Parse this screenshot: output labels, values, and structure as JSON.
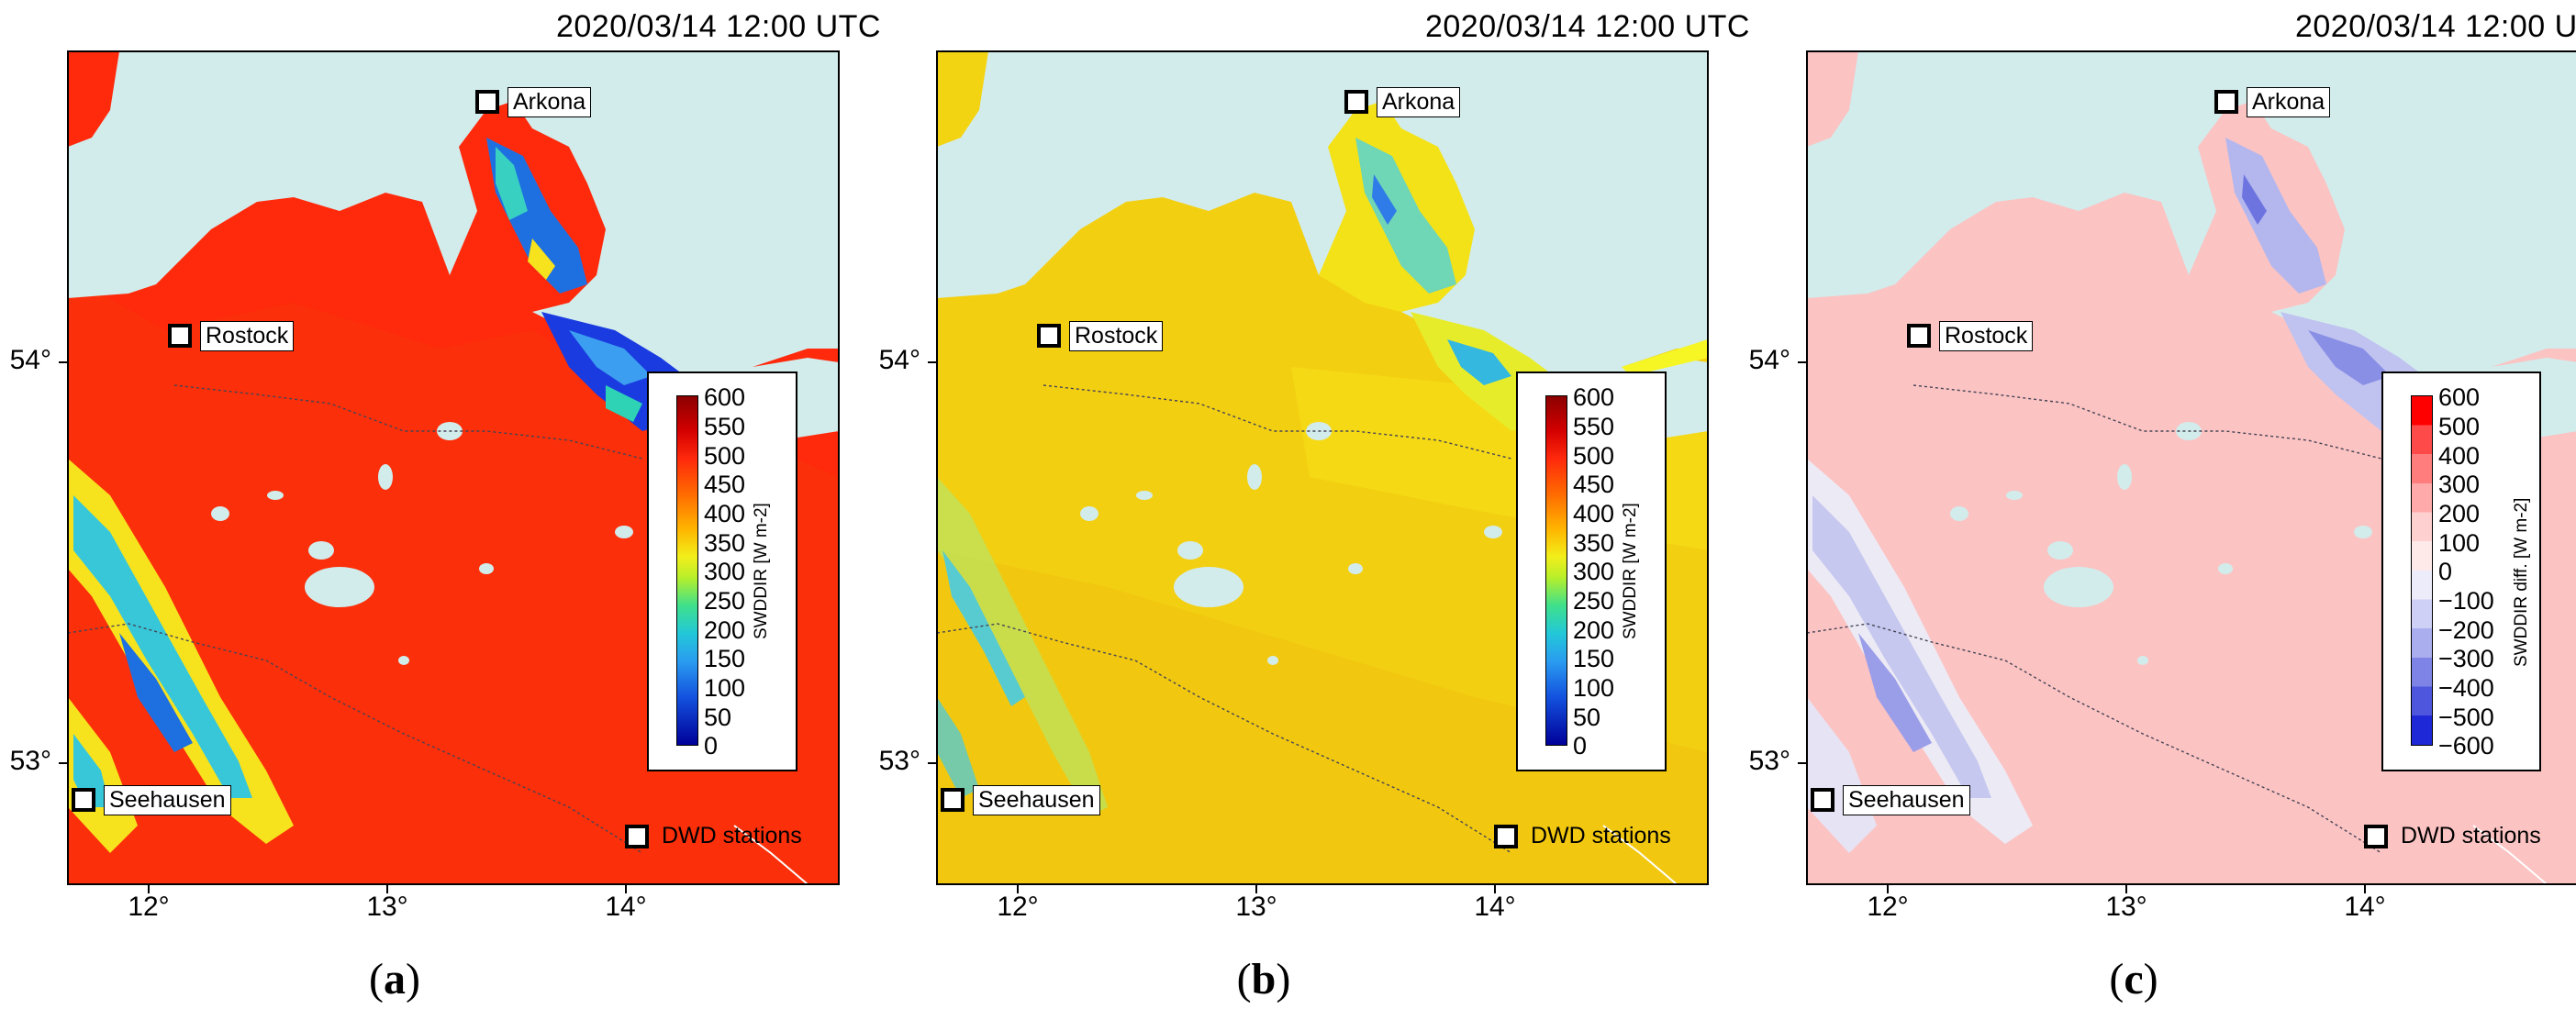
{
  "timestamp": "2020/03/14 12:00 UTC",
  "lat_labels": [
    "54°",
    "53°"
  ],
  "lon_labels": [
    "12°",
    "13°",
    "14°"
  ],
  "stations": {
    "arkona": "Arkona",
    "rostock": "Rostock",
    "seehausen": "Seehausen",
    "legend": "DWD stations"
  },
  "panels": [
    {
      "id": "a",
      "label": "(a)",
      "label_letter": "a",
      "colorbar_title": "SWDDIR [W m-2]",
      "colorbar_ticks": [
        "600",
        "550",
        "500",
        "450",
        "400",
        "350",
        "300",
        "250",
        "200",
        "150",
        "100",
        "50",
        "0"
      ],
      "land_color": "#ff2a0c",
      "sea_color": "#d2ecec"
    },
    {
      "id": "b",
      "label": "(b)",
      "label_letter": "b",
      "colorbar_title": "SWDDIR [W m-2]",
      "colorbar_ticks": [
        "600",
        "550",
        "500",
        "450",
        "400",
        "350",
        "300",
        "250",
        "200",
        "150",
        "100",
        "50",
        "0"
      ],
      "land_color": "#f3cf12",
      "sea_color": "#d2ecec"
    },
    {
      "id": "c",
      "label": "(c)",
      "label_letter": "c",
      "colorbar_title": "SWDDIR diff. [W m-2]",
      "colorbar_ticks": [
        "600",
        "500",
        "400",
        "300",
        "200",
        "100",
        "0",
        "−100",
        "−200",
        "−300",
        "−400",
        "−500",
        "−600"
      ],
      "land_color": "#fcc3c3",
      "sea_color": "#d2ecec"
    }
  ]
}
